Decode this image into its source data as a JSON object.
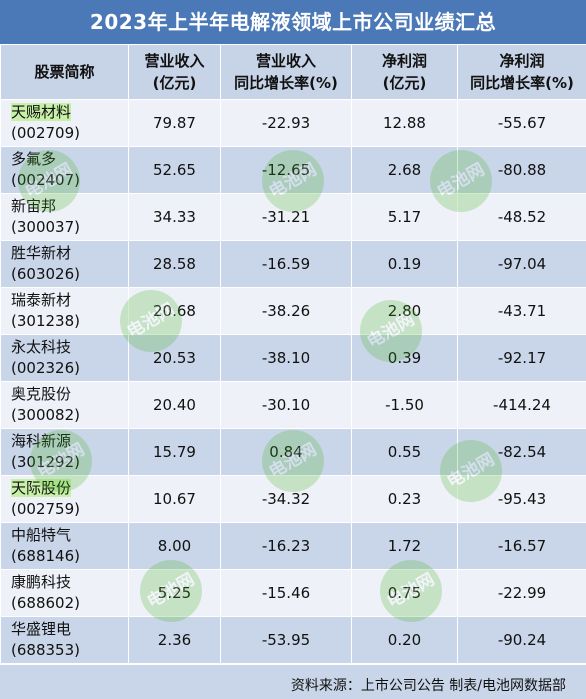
{
  "title": "2023年上半年电解液领域上市公司业绩汇总",
  "headers": {
    "name": "股票简称",
    "revenue_line1": "营业收入",
    "revenue_line2": "(亿元)",
    "revenue_yoy_line1": "营业收入",
    "revenue_yoy_line2": "同比增长率(%)",
    "profit_line1": "净利润",
    "profit_line2": "(亿元)",
    "profit_yoy_line1": "净利润",
    "profit_yoy_line2": "同比增长率(%)"
  },
  "rows": [
    {
      "name": "天赐材料",
      "code": "(002709)",
      "revenue": "79.87",
      "revenue_yoy": "-22.93",
      "profit": "12.88",
      "profit_yoy": "-55.67",
      "highlighted": true
    },
    {
      "name": "多氟多",
      "code": "(002407)",
      "revenue": "52.65",
      "revenue_yoy": "-12.65",
      "profit": "2.68",
      "profit_yoy": "-80.88",
      "highlighted": false
    },
    {
      "name": "新宙邦",
      "code": "(300037)",
      "revenue": "34.33",
      "revenue_yoy": "-31.21",
      "profit": "5.17",
      "profit_yoy": "-48.52",
      "highlighted": false
    },
    {
      "name": "胜华新材",
      "code": "(603026)",
      "revenue": "28.58",
      "revenue_yoy": "-16.59",
      "profit": "0.19",
      "profit_yoy": "-97.04",
      "highlighted": false
    },
    {
      "name": "瑞泰新材",
      "code": "(301238)",
      "revenue": "20.68",
      "revenue_yoy": "-38.26",
      "profit": "2.80",
      "profit_yoy": "-43.71",
      "highlighted": false
    },
    {
      "name": "永太科技",
      "code": "(002326)",
      "revenue": "20.53",
      "revenue_yoy": "-38.10",
      "profit": "0.39",
      "profit_yoy": "-92.17",
      "highlighted": false
    },
    {
      "name": "奥克股份",
      "code": "(300082)",
      "revenue": "20.40",
      "revenue_yoy": "-30.10",
      "profit": "-1.50",
      "profit_yoy": "-414.24",
      "highlighted": false
    },
    {
      "name": "海科新源",
      "code": "(301292)",
      "revenue": "15.79",
      "revenue_yoy": "0.84",
      "profit": "0.55",
      "profit_yoy": "-82.54",
      "highlighted": false
    },
    {
      "name": "天际股份",
      "code": "(002759)",
      "revenue": "10.67",
      "revenue_yoy": "-34.32",
      "profit": "0.23",
      "profit_yoy": "-95.43",
      "highlighted": true
    },
    {
      "name": "中船特气",
      "code": "(688146)",
      "revenue": "8.00",
      "revenue_yoy": "-16.23",
      "profit": "1.72",
      "profit_yoy": "-16.57",
      "highlighted": false
    },
    {
      "name": "康鹏科技",
      "code": "(688602)",
      "revenue": "5.25",
      "revenue_yoy": "-15.46",
      "profit": "0.75",
      "profit_yoy": "-22.99",
      "highlighted": false
    },
    {
      "name": "华盛锂电",
      "code": "(688353)",
      "revenue": "2.36",
      "revenue_yoy": "-53.95",
      "profit": "0.20",
      "profit_yoy": "-90.24",
      "highlighted": false
    }
  ],
  "footer": "资料来源：上市公司公告 制表/电池网数据部",
  "watermark": {
    "text": "电池网",
    "color": "#43b31f"
  },
  "colors": {
    "title_bg": "#4b78b6",
    "header_bg": "#c7d3e6",
    "row_light": "#eef1f8",
    "row_dark": "#c9d5e8",
    "highlight": "#c8f0a8"
  }
}
